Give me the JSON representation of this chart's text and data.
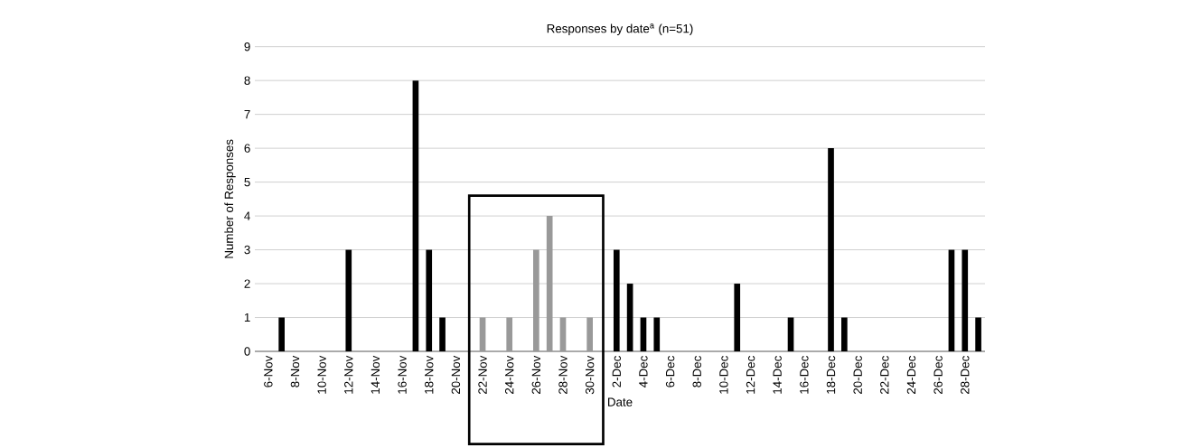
{
  "chart_data": {
    "type": "bar",
    "title": "Responses by date$^{a}$ (n=51)",
    "xlabel": "Date",
    "ylabel": "Number of Responses",
    "categories": [
      "6-Nov",
      null,
      "8-Nov",
      null,
      "10-Nov",
      null,
      "12-Nov",
      null,
      "14-Nov",
      null,
      "16-Nov",
      null,
      "18-Nov",
      null,
      "20-Nov",
      null,
      "22-Nov",
      null,
      "24-Nov",
      null,
      "26-Nov",
      null,
      "28-Nov",
      null,
      "30-Nov",
      null,
      "2-Dec",
      null,
      "4-Dec",
      null,
      "6-Dec",
      null,
      "8-Dec",
      null,
      "10-Dec",
      null,
      "12-Dec",
      null,
      "14-Dec",
      null,
      "16-Dec",
      null,
      "18-Dec",
      null,
      "20-Dec",
      null,
      "22-Dec",
      null,
      "24-Dec",
      null,
      "26-Dec",
      null,
      "28-Dec",
      null
    ],
    "values": [
      0,
      1,
      0,
      0,
      0,
      0,
      3,
      0,
      0,
      0,
      0,
      8,
      3,
      1,
      0,
      0,
      1,
      0,
      1,
      0,
      3,
      4,
      1,
      0,
      1,
      0,
      3,
      2,
      1,
      1,
      0,
      0,
      0,
      0,
      0,
      2,
      0,
      0,
      0,
      1,
      0,
      0,
      6,
      1,
      0,
      0,
      0,
      0,
      0,
      0,
      0,
      3,
      3,
      1
    ],
    "colors": [
      "#000000",
      "#000000",
      "#000000",
      "#000000",
      "#000000",
      "#000000",
      "#000000",
      "#000000",
      "#000000",
      "#000000",
      "#000000",
      "#000000",
      "#000000",
      "#000000",
      "#000000",
      "#000000",
      "#999999",
      "#999999",
      "#999999",
      "#999999",
      "#999999",
      "#999999",
      "#999999",
      "#999999",
      "#999999",
      "#000000",
      "#000000",
      "#000000",
      "#000000",
      "#000000",
      "#000000",
      "#000000",
      "#000000",
      "#000000",
      "#000000",
      "#000000",
      "#000000",
      "#000000",
      "#000000",
      "#000000",
      "#000000",
      "#000000",
      "#000000",
      "#000000",
      "#000000",
      "#000000",
      "#000000",
      "#000000",
      "#000000",
      "#000000",
      "#000000",
      "#000000",
      "#000000",
      "#000000"
    ],
    "ylim": [
      0,
      9
    ],
    "yticks": [
      0,
      1,
      2,
      3,
      4,
      5,
      6,
      7,
      8,
      9
    ],
    "grid": "y"
  }
}
